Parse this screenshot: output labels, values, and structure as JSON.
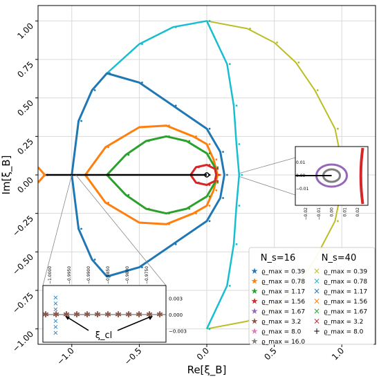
{
  "chart_data": {
    "type": "scatter",
    "xlabel": "Re[ξ_B]",
    "ylabel": "Im[ξ_B]",
    "xlim": [
      -1.25,
      1.25
    ],
    "ylim": [
      -1.1,
      1.1
    ],
    "xticks": [
      -1.0,
      -0.5,
      0.0,
      0.5,
      1.0
    ],
    "xtick_labels": [
      "−1.0",
      "−0.5",
      "0.0",
      "0.5",
      "1.0"
    ],
    "yticks": [
      1.0,
      0.75,
      0.5,
      0.25,
      0.0,
      -0.25,
      -0.5,
      -0.75,
      -1.0
    ],
    "ytick_labels": [
      "1.00",
      "0.75",
      "0.50",
      "0.25",
      "0.00",
      "−0.25",
      "−0.50",
      "−0.75",
      "−1.00"
    ],
    "grid": true,
    "legend_placement": "bottom-right",
    "legend": {
      "left_title": "N_s=16",
      "right_title": "N_s=40",
      "left_entries": [
        {
          "label": "ϱ_max = 0.39",
          "marker": "star",
          "color": "#1f77b4"
        },
        {
          "label": "ϱ_max = 0.78",
          "marker": "star",
          "color": "#ff7f0e"
        },
        {
          "label": "ϱ_max = 1.17",
          "marker": "star",
          "color": "#2ca02c"
        },
        {
          "label": "ϱ_max = 1.56",
          "marker": "star",
          "color": "#d62728"
        },
        {
          "label": "ϱ_max = 1.67",
          "marker": "star",
          "color": "#9467bd"
        },
        {
          "label": "ϱ_max = 3.2",
          "marker": "star",
          "color": "#8c564b"
        },
        {
          "label": "ϱ_max = 8.0",
          "marker": "star",
          "color": "#e377c2"
        },
        {
          "label": "ϱ_max = 16.0",
          "marker": "star",
          "color": "#7f7f7f"
        }
      ],
      "right_entries": [
        {
          "label": "ϱ_max = 0.39",
          "marker": "x",
          "color": "#bcbd22"
        },
        {
          "label": "ϱ_max = 0.78",
          "marker": "x",
          "color": "#17becf"
        },
        {
          "label": "ϱ_max = 1.17",
          "marker": "x",
          "color": "#1f77b4"
        },
        {
          "label": "ϱ_max = 1.56",
          "marker": "x",
          "color": "#ff7f0e"
        },
        {
          "label": "ϱ_max = 1.67",
          "marker": "x",
          "color": "#2ca02c"
        },
        {
          "label": "ϱ_max = 3.2",
          "marker": "x",
          "color": "#d62728"
        },
        {
          "label": "ϱ_max = 8.0",
          "marker": "plus",
          "color": "#000000"
        }
      ]
    },
    "series": [
      {
        "name": "ϱ_max = 0.39",
        "color": "#bcbd22",
        "description_points": [
          [
            0.0,
            1.0
          ],
          [
            0.3,
            0.95
          ],
          [
            0.5,
            0.86
          ],
          [
            0.66,
            0.73
          ],
          [
            0.8,
            0.55
          ],
          [
            0.95,
            0.3
          ],
          [
            1.02,
            0.0
          ],
          [
            0.95,
            -0.3
          ],
          [
            0.8,
            -0.55
          ],
          [
            0.66,
            -0.73
          ],
          [
            0.5,
            -0.86
          ],
          [
            0.3,
            -0.95
          ],
          [
            0.0,
            -1.0
          ]
        ]
      },
      {
        "name": "ϱ_max = 0.78",
        "color": "#17becf",
        "description_points": [
          [
            -0.74,
            0.66
          ],
          [
            -0.5,
            0.85
          ],
          [
            -0.25,
            0.96
          ],
          [
            0.0,
            1.0
          ],
          [
            0.15,
            0.72
          ],
          [
            0.2,
            0.45
          ],
          [
            0.22,
            0.2
          ],
          [
            0.24,
            0.0
          ],
          [
            0.22,
            -0.2
          ],
          [
            0.2,
            -0.45
          ],
          [
            0.15,
            -0.72
          ],
          [
            0.0,
            -1.0
          ]
        ]
      },
      {
        "name": "ϱ_max = 1.17",
        "color": "#1f77b4",
        "description_points": [
          [
            -1.0,
            0.0
          ],
          [
            -0.95,
            0.35
          ],
          [
            -0.85,
            0.55
          ],
          [
            -0.74,
            0.66
          ],
          [
            -0.5,
            0.6
          ],
          [
            -0.25,
            0.45
          ],
          [
            0.0,
            0.3
          ],
          [
            0.1,
            0.15
          ],
          [
            0.13,
            0.0
          ],
          [
            0.1,
            -0.15
          ],
          [
            0.0,
            -0.3
          ],
          [
            -0.25,
            -0.45
          ],
          [
            -0.5,
            -0.6
          ],
          [
            -0.74,
            -0.66
          ],
          [
            -0.85,
            -0.55
          ],
          [
            -0.95,
            -0.35
          ]
        ]
      },
      {
        "name": "ϱ_max = 1.56",
        "color": "#ff7f0e",
        "description_points": [
          [
            -0.9,
            0.0
          ],
          [
            -0.75,
            0.18
          ],
          [
            -0.5,
            0.31
          ],
          [
            -0.3,
            0.32
          ],
          [
            -0.1,
            0.25
          ],
          [
            0.0,
            0.2
          ],
          [
            0.05,
            0.1
          ],
          [
            0.08,
            0.0
          ],
          [
            0.05,
            -0.1
          ],
          [
            0.0,
            -0.2
          ],
          [
            -0.1,
            -0.25
          ],
          [
            -0.3,
            -0.32
          ],
          [
            -0.5,
            -0.31
          ],
          [
            -0.75,
            -0.18
          ]
        ]
      },
      {
        "name": "ϱ_max = 1.67",
        "color": "#2ca02c",
        "description_points": [
          [
            -0.74,
            0.0
          ],
          [
            -0.6,
            0.13
          ],
          [
            -0.45,
            0.22
          ],
          [
            -0.3,
            0.25
          ],
          [
            -0.15,
            0.22
          ],
          [
            0.0,
            0.14
          ],
          [
            0.06,
            0.05
          ],
          [
            0.07,
            0.0
          ],
          [
            0.06,
            -0.05
          ],
          [
            0.0,
            -0.14
          ],
          [
            -0.15,
            -0.22
          ],
          [
            -0.3,
            -0.25
          ],
          [
            -0.45,
            -0.22
          ],
          [
            -0.6,
            -0.13
          ]
        ]
      },
      {
        "name": "ϱ_max = 3.2",
        "color": "#d62728",
        "description_points": [
          [
            -0.12,
            0.0
          ],
          [
            -0.08,
            0.05
          ],
          [
            0.0,
            0.065
          ],
          [
            0.06,
            0.04
          ],
          [
            0.07,
            0.0
          ],
          [
            0.06,
            -0.04
          ],
          [
            0.0,
            -0.065
          ],
          [
            -0.08,
            -0.05
          ]
        ]
      },
      {
        "name": "ϱ_max = 8.0",
        "color": "#000000",
        "description_points": [
          [
            -1.2,
            0.0
          ],
          [
            0.0,
            0.0
          ]
        ]
      }
    ],
    "insets": [
      {
        "name": "zoom-right",
        "xticks": [
          -0.02,
          -0.01,
          0.0,
          0.01,
          0.02
        ],
        "xtick_labels": [
          "−0.02",
          "−0.01",
          "0.00",
          "0.01",
          "0.02"
        ],
        "yticks": [
          0.01,
          0.0,
          -0.01
        ],
        "ytick_labels": [
          "0.01",
          "0.00",
          "−0.01"
        ]
      },
      {
        "name": "zoom-left",
        "xticks": [
          -1.0,
          -0.995,
          -0.99,
          -0.985,
          -0.98,
          -0.975
        ],
        "xtick_labels": [
          "−1.0000",
          "−0.9950",
          "−0.9900",
          "−0.9850",
          "−0.9800",
          "−0.9750"
        ],
        "yticks": [
          0.003,
          0.0,
          -0.003
        ],
        "ytick_labels": [
          "0.003",
          "0.000",
          "−0.003"
        ],
        "annotation": "ξ_cl"
      }
    ]
  }
}
